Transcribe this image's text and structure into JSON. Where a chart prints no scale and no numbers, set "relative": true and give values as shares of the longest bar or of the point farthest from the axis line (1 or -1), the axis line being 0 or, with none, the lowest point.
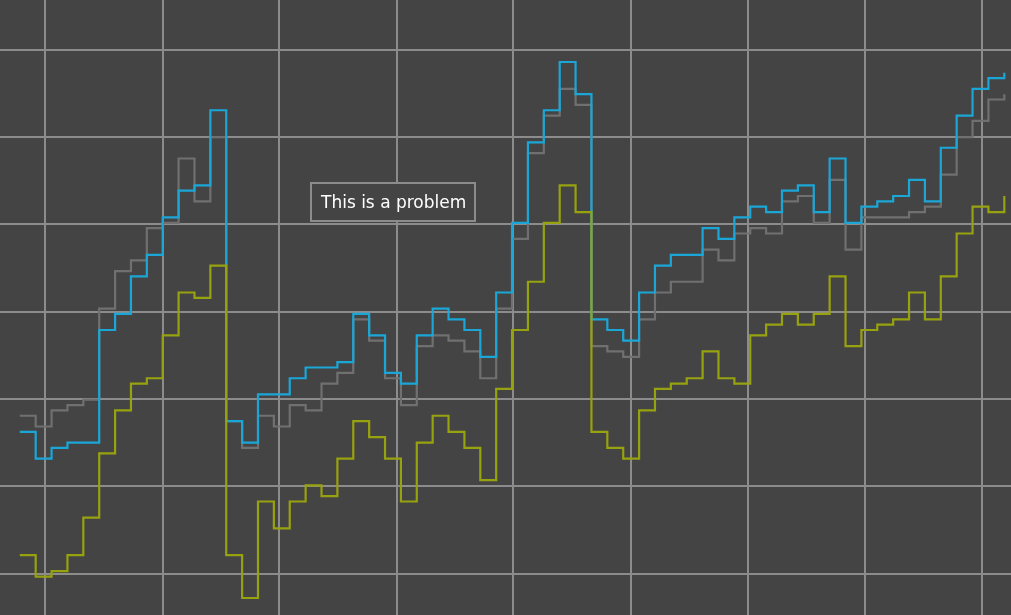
{
  "chart_data": {
    "type": "step",
    "relative": true,
    "grid": true,
    "annotations": [
      "This is a problem"
    ],
    "categories": [
      null,
      null,
      null,
      null,
      null,
      null,
      null,
      null,
      null,
      null,
      null,
      null,
      null,
      null,
      null,
      null,
      null,
      null,
      null,
      null,
      null,
      null,
      null,
      null,
      null,
      null,
      null,
      null,
      null,
      null,
      null,
      null,
      null,
      null,
      null,
      null,
      null,
      null,
      null,
      null,
      null,
      null,
      null,
      null,
      null,
      null,
      null,
      null,
      null,
      null,
      null,
      null,
      null,
      null,
      null,
      null,
      null,
      null,
      null,
      null,
      null,
      null,
      null
    ],
    "series": [
      {
        "color": "#707070",
        "values": [
          0.34,
          0.32,
          0.35,
          0.36,
          0.37,
          0.54,
          0.61,
          0.63,
          0.69,
          0.7,
          0.82,
          0.74,
          0.86,
          0.33,
          0.28,
          0.34,
          0.32,
          0.36,
          0.35,
          0.4,
          0.42,
          0.52,
          0.48,
          0.41,
          0.36,
          0.47,
          0.49,
          0.48,
          0.46,
          0.41,
          0.54,
          0.67,
          0.83,
          0.9,
          0.95,
          0.92,
          0.47,
          0.46,
          0.45,
          0.52,
          0.57,
          0.59,
          0.59,
          0.65,
          0.63,
          0.68,
          0.69,
          0.68,
          0.74,
          0.75,
          0.7,
          0.78,
          0.65,
          0.71,
          0.71,
          0.71,
          0.72,
          0.73,
          0.79,
          0.86,
          0.89,
          0.93,
          0.94
        ]
      },
      {
        "color": "#1aa7d8",
        "values": [
          0.31,
          0.26,
          0.28,
          0.29,
          0.29,
          0.5,
          0.53,
          0.6,
          0.64,
          0.71,
          0.76,
          0.77,
          0.91,
          0.33,
          0.29,
          0.38,
          0.38,
          0.41,
          0.43,
          0.43,
          0.44,
          0.53,
          0.49,
          0.42,
          0.4,
          0.49,
          0.54,
          0.52,
          0.5,
          0.45,
          0.57,
          0.7,
          0.85,
          0.91,
          1,
          0.94,
          0.52,
          0.5,
          0.48,
          0.57,
          0.62,
          0.64,
          0.64,
          0.69,
          0.67,
          0.71,
          0.73,
          0.72,
          0.76,
          0.77,
          0.72,
          0.82,
          0.7,
          0.73,
          0.74,
          0.75,
          0.78,
          0.74,
          0.84,
          0.9,
          0.95,
          0.97,
          0.98
        ]
      },
      {
        "color": "#97a20f",
        "values": [
          0.08,
          0.04,
          0.05,
          0.08,
          0.15,
          0.27,
          0.35,
          0.4,
          0.41,
          0.49,
          0.57,
          0.56,
          0.62,
          0.08,
          0,
          0.18,
          0.13,
          0.18,
          0.21,
          0.19,
          0.26,
          0.33,
          0.3,
          0.26,
          0.18,
          0.29,
          0.34,
          0.31,
          0.28,
          0.22,
          0.39,
          0.5,
          0.59,
          0.7,
          0.77,
          0.72,
          0.31,
          0.28,
          0.26,
          0.35,
          0.39,
          0.4,
          0.41,
          0.46,
          0.41,
          0.4,
          0.49,
          0.51,
          0.53,
          0.51,
          0.53,
          0.6,
          0.47,
          0.5,
          0.51,
          0.52,
          0.57,
          0.52,
          0.6,
          0.68,
          0.73,
          0.72,
          0.75
        ]
      }
    ]
  }
}
